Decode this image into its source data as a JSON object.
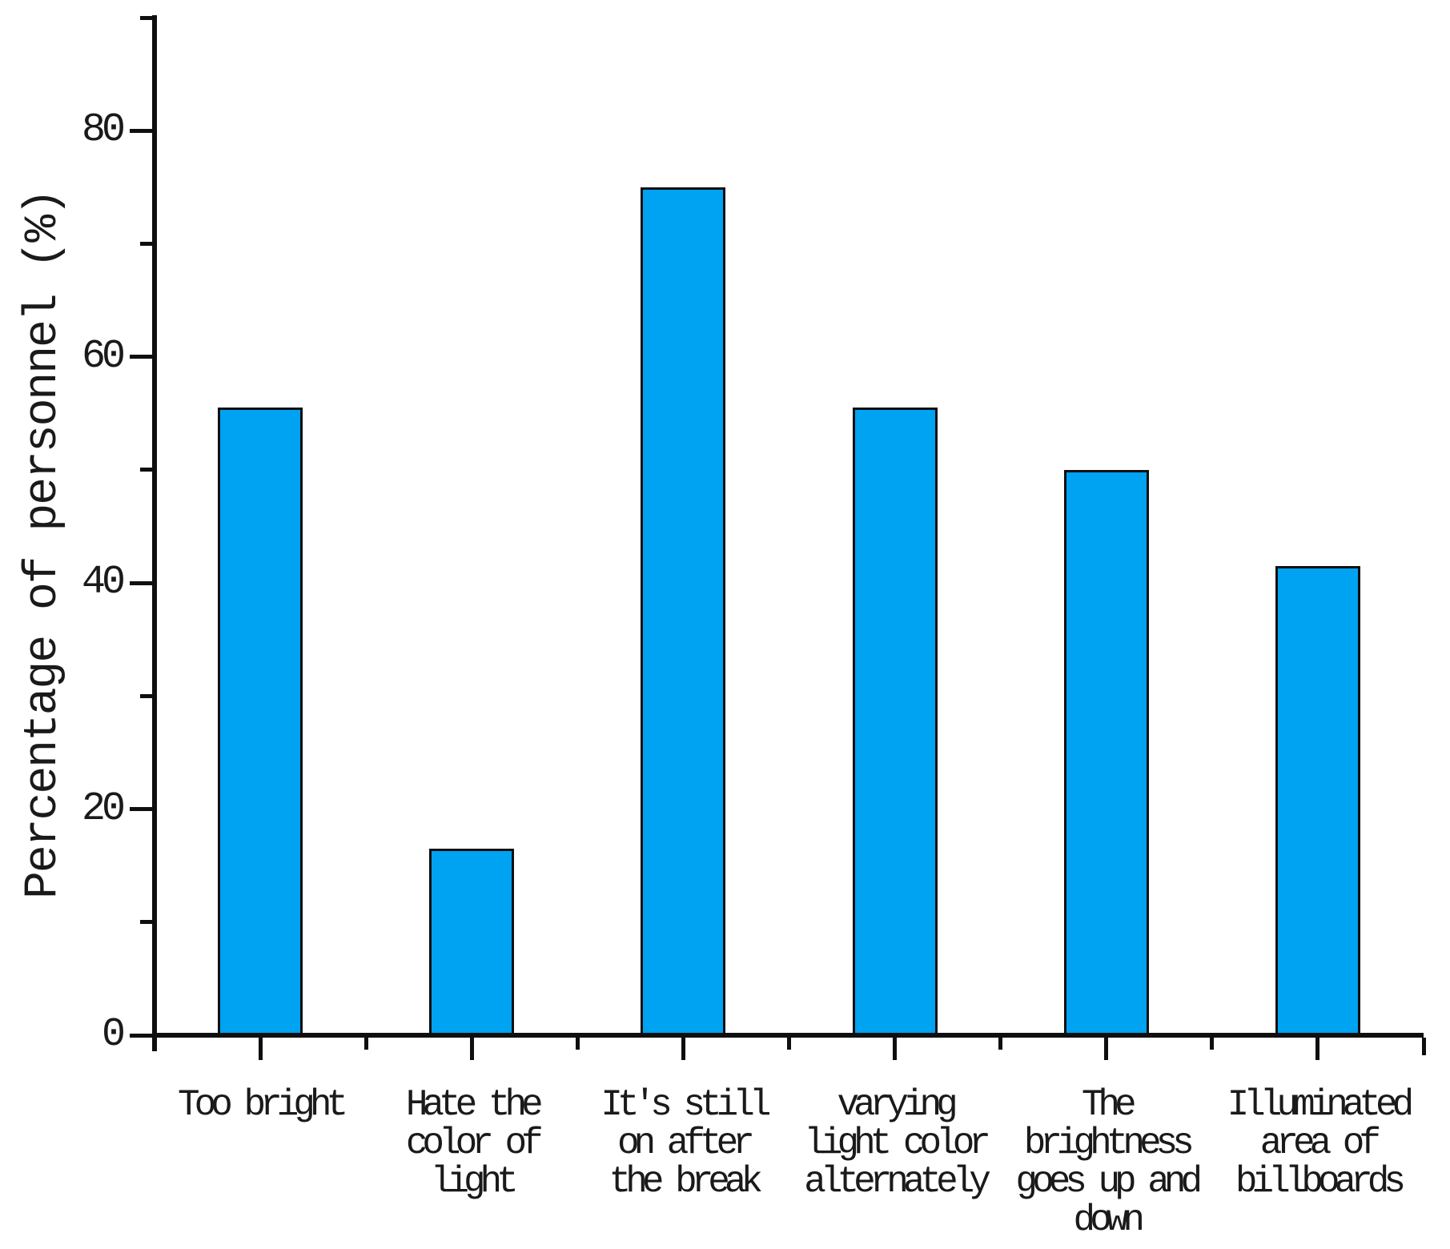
{
  "chart_data": {
    "type": "bar",
    "title": "",
    "xlabel": "",
    "ylabel": "Percentage of personnel (%)",
    "categories": [
      "Too bright",
      "Hate the\ncolor of\nlight",
      "It's still\non after\nthe break",
      "varying\nlight color\nalternately",
      "The\nbrightness\ngoes up and\ndown",
      "Illuminated\narea of\nbillboards"
    ],
    "values": [
      55.5,
      16.5,
      75,
      55.5,
      50,
      41.5
    ],
    "ylim": [
      0,
      90
    ],
    "yticks_major": [
      0,
      20,
      40,
      60,
      80
    ],
    "yticks_minor": [
      10,
      30,
      50,
      70,
      90
    ],
    "ytick_labels": [
      "0",
      "20",
      "40",
      "60",
      "80"
    ],
    "grid": false,
    "legend": "none",
    "bar_color": "#00A2F2",
    "bar_border_color": "#0f0f0f",
    "axis_color": "#0f0f0f",
    "text_color": "#1a1a1a"
  }
}
